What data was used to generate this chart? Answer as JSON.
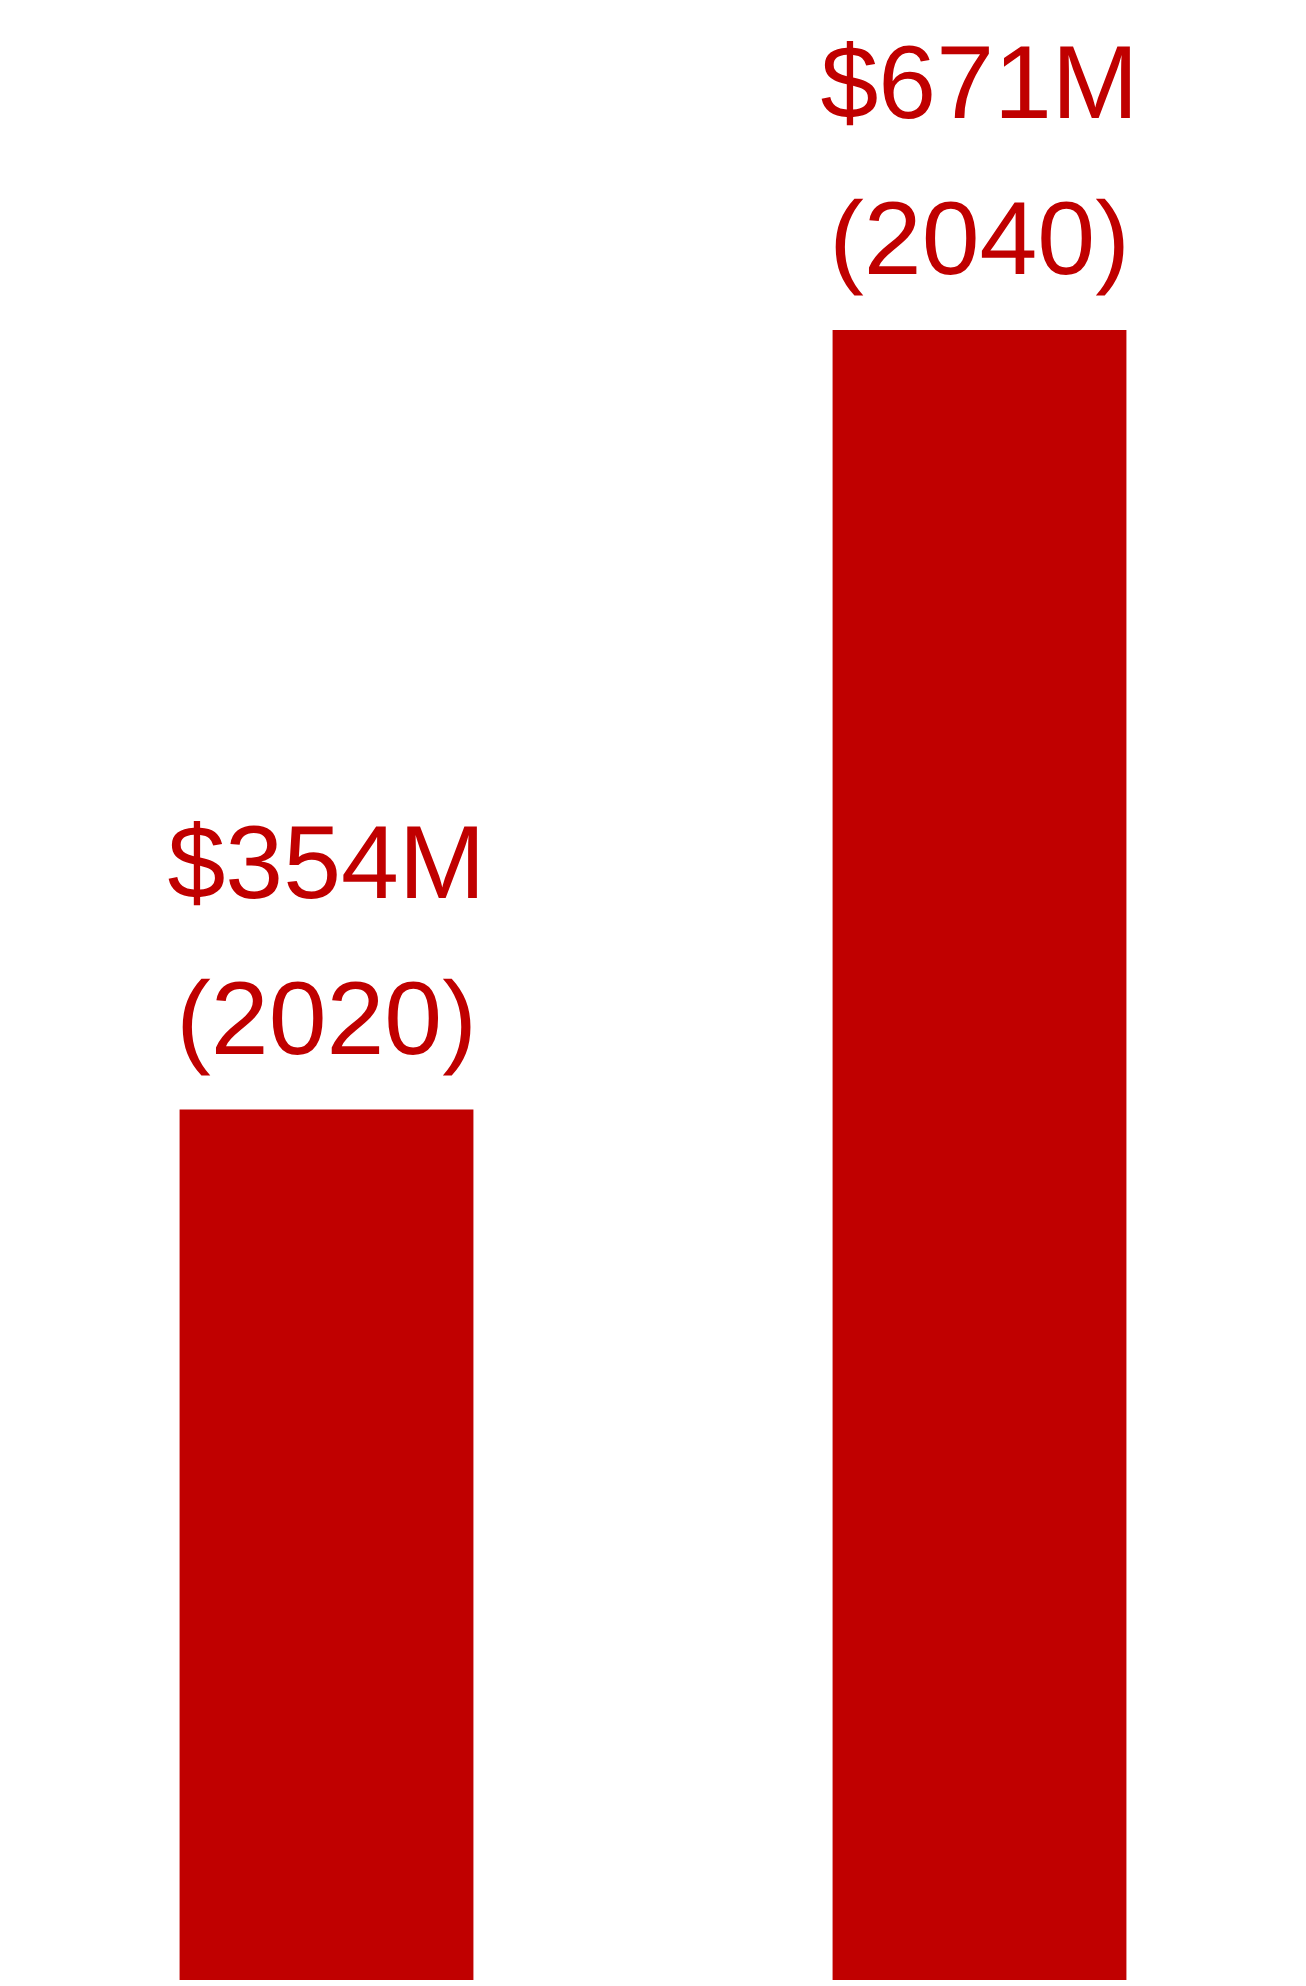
{
  "chart_data": {
    "type": "bar",
    "categories": [
      "(2020)",
      "(2040)"
    ],
    "values": [
      354,
      671
    ],
    "color": "#c00000",
    "value_labels": [
      "$354M",
      "$671M"
    ],
    "grid": false,
    "legend": false,
    "tick_labels": false
  }
}
